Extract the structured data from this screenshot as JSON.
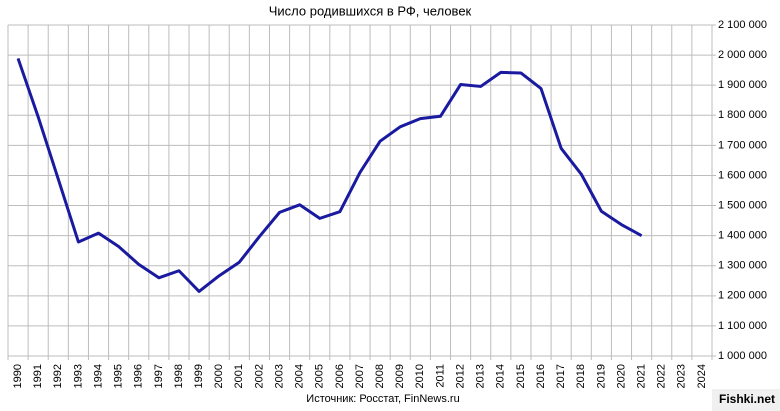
{
  "chart_data": {
    "type": "line",
    "title": "Число родившихся в РФ, человек",
    "categories": [
      "1990",
      "1991",
      "1992",
      "1993",
      "1994",
      "1995",
      "1996",
      "1997",
      "1998",
      "1999",
      "2000",
      "2001",
      "2002",
      "2003",
      "2004",
      "2005",
      "2006",
      "2007",
      "2008",
      "2009",
      "2010",
      "2011",
      "2012",
      "2013",
      "2014",
      "2015",
      "2016",
      "2017",
      "2018",
      "2019",
      "2020",
      "2021",
      "2022",
      "2023",
      "2024"
    ],
    "series": [
      {
        "name": "Число родившихся",
        "color": "#1a1aa0",
        "values": [
          1988858,
          1794626,
          1587644,
          1378983,
          1408159,
          1363806,
          1304638,
          1259943,
          1283292,
          1214689,
          1266800,
          1311604,
          1396967,
          1477301,
          1502477,
          1457376,
          1479637,
          1610122,
          1713947,
          1761687,
          1788948,
          1796629,
          1902084,
          1895822,
          1942683,
          1940579,
          1888729,
          1690307,
          1604344,
          1481074,
          1436514,
          1400000,
          null,
          null,
          null
        ]
      }
    ],
    "ylim": [
      1000000,
      2100000
    ],
    "yticks": [
      {
        "value": 1000000,
        "label": "1 000 000"
      },
      {
        "value": 1100000,
        "label": "1 100 000"
      },
      {
        "value": 1200000,
        "label": "1 200 000"
      },
      {
        "value": 1300000,
        "label": "1 300 000"
      },
      {
        "value": 1400000,
        "label": "1 400 000"
      },
      {
        "value": 1500000,
        "label": "1 500 000"
      },
      {
        "value": 1600000,
        "label": "1 600 000"
      },
      {
        "value": 1700000,
        "label": "1 700 000"
      },
      {
        "value": 1800000,
        "label": "1 800 000"
      },
      {
        "value": 1900000,
        "label": "1 900 000"
      },
      {
        "value": 2000000,
        "label": "2 000 000"
      },
      {
        "value": 2100000,
        "label": "2 100 000"
      }
    ],
    "grid": true,
    "source": "Источник: Росстат, FinNews.ru",
    "watermark": "Fishki.net"
  }
}
